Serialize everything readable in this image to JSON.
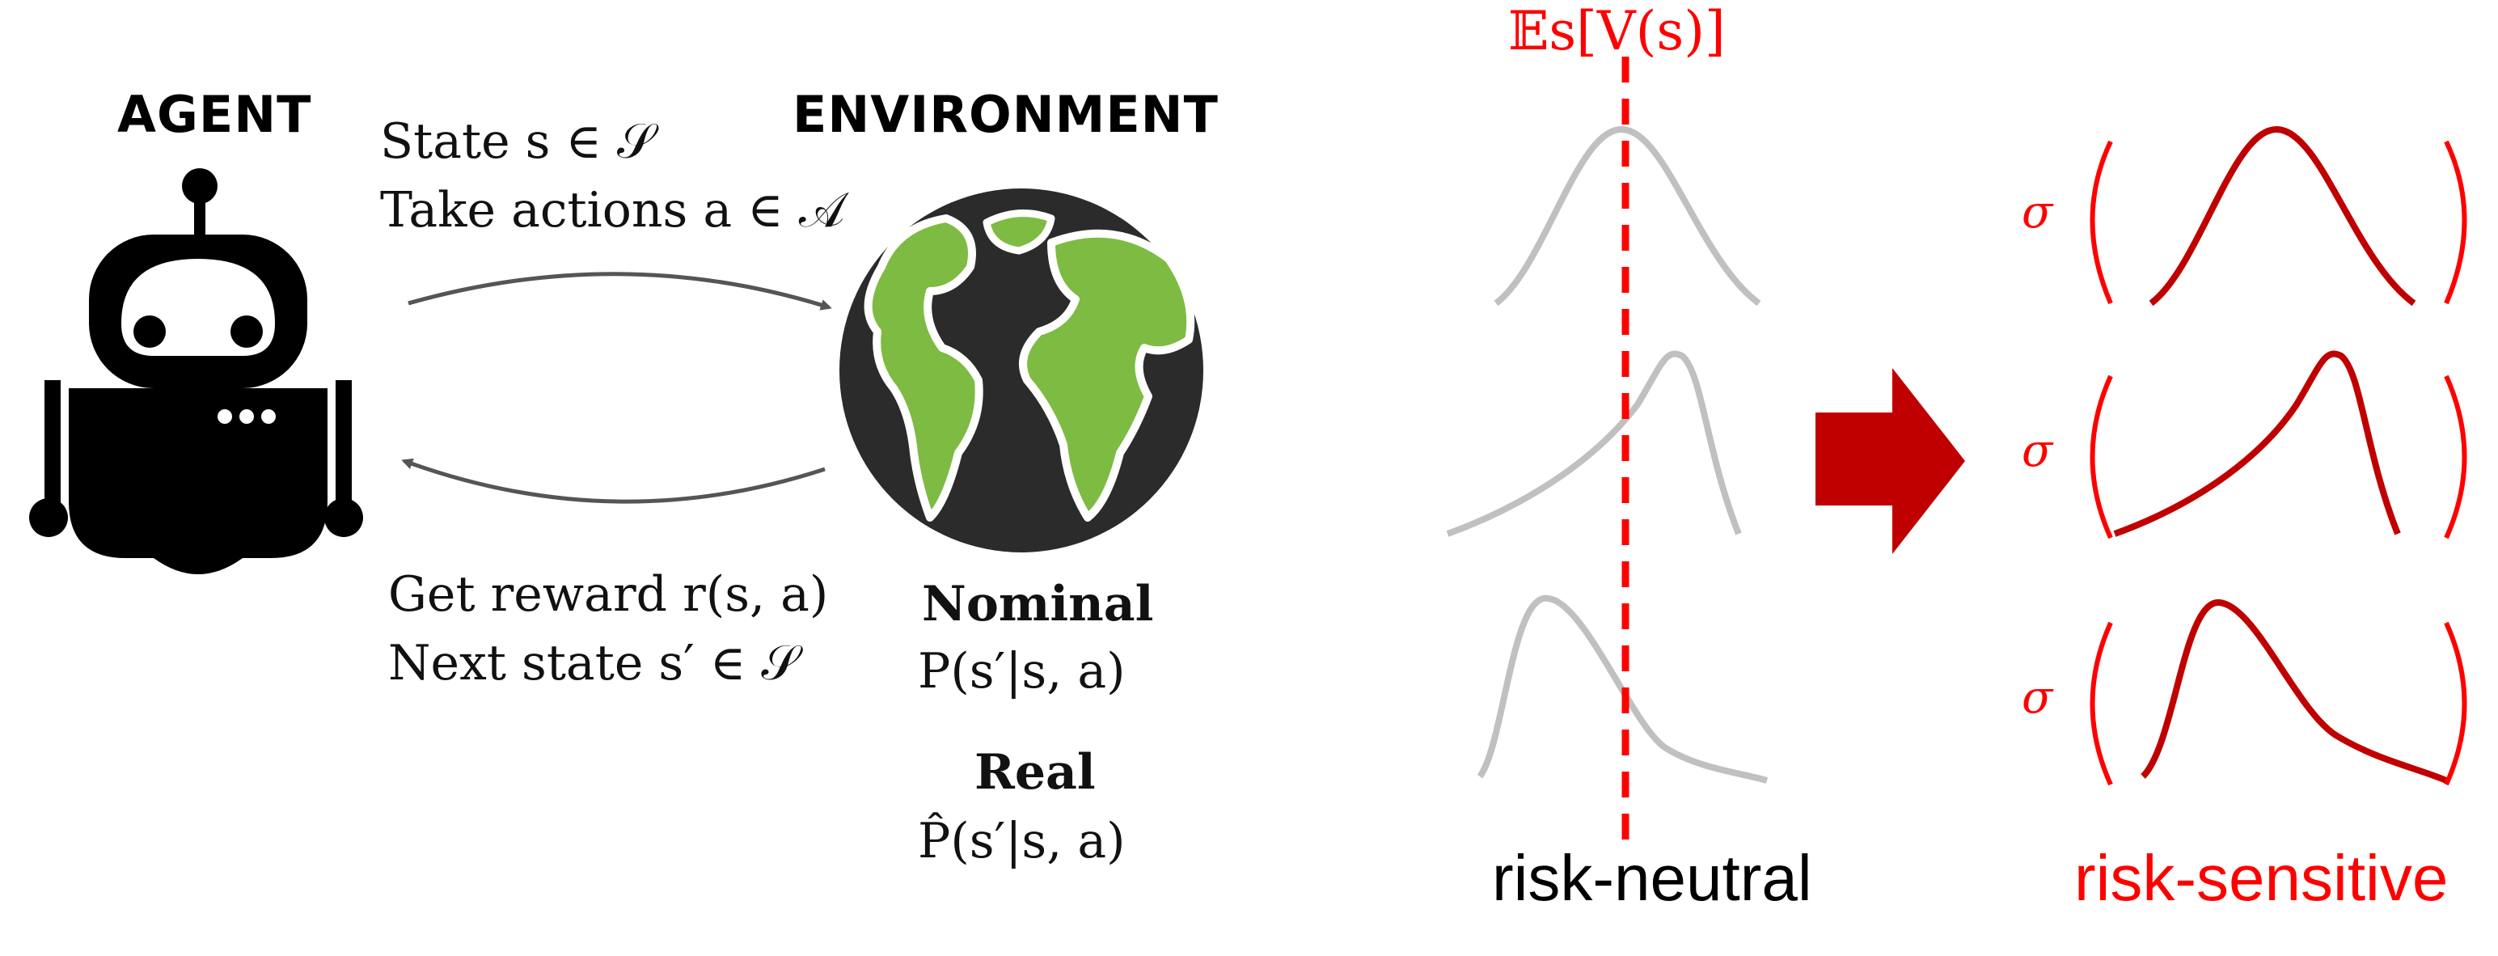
{
  "agent": {
    "heading": "AGENT",
    "icon": "robot-icon"
  },
  "environment": {
    "heading": "ENVIRONMENT",
    "icon": "globe-icon",
    "nominal_label": "Nominal",
    "nominal_formula": "P(s′|s, a)",
    "real_label": "Real",
    "real_formula": "P̂(s′|s, a)"
  },
  "arrows": {
    "forward_line1": "State s ∈ 𝒮",
    "forward_line2": "Take actions a ∈ 𝒜",
    "backward_line1": "Get reward r(s, a)",
    "backward_line2": "Next state s′ ∈ 𝒮"
  },
  "risk_neutral": {
    "expectation_label": "𝔼s[V(s)]",
    "caption": "risk-neutral"
  },
  "risk_sensitive": {
    "sigma_symbol": "σ",
    "caption": "risk-sensitive"
  },
  "colors": {
    "accent_red": "#ff0000",
    "dark_red": "#c00000",
    "curve_gray": "#c0c0c0",
    "globe_green": "#7dbb42",
    "globe_dark": "#2b2b2b",
    "arrow_gray": "#555555"
  }
}
